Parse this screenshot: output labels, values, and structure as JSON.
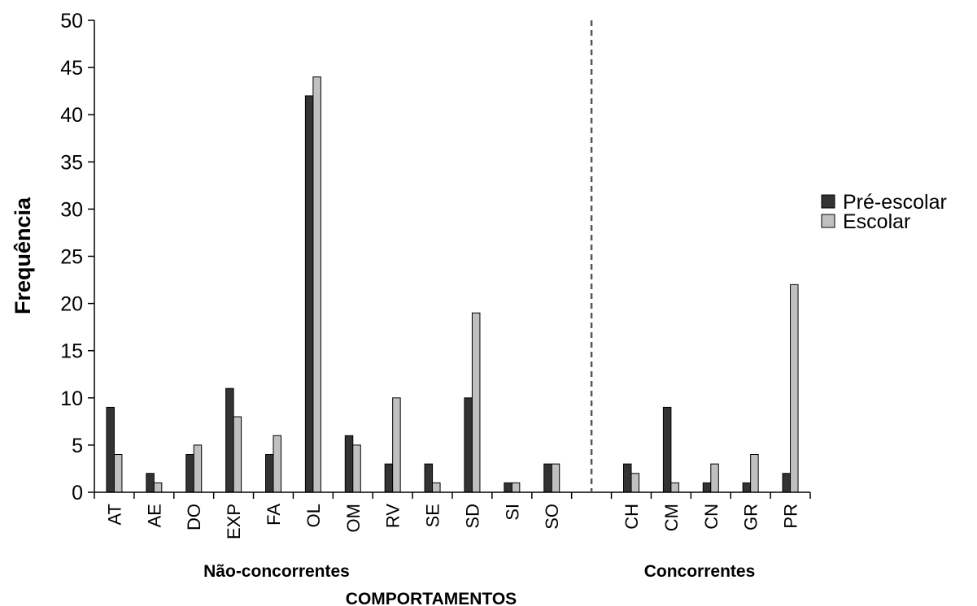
{
  "chart_data": {
    "type": "bar",
    "ylabel": "Frequência",
    "xlabel": "COMPORTAMENTOS",
    "ylim": [
      0,
      50
    ],
    "yticks": [
      0,
      5,
      10,
      15,
      20,
      25,
      30,
      35,
      40,
      45,
      50
    ],
    "categories": [
      "AT",
      "AE",
      "DO",
      "EXP",
      "FA",
      "OL",
      "OM",
      "RV",
      "SE",
      "SD",
      "SI",
      "SO",
      "",
      "CH",
      "CM",
      "CN",
      "GR",
      "PR"
    ],
    "groups": [
      {
        "label": "Não-concorrentes",
        "categories": [
          "AT",
          "AE",
          "DO",
          "EXP",
          "FA",
          "OL",
          "OM",
          "RV",
          "SE",
          "SD",
          "SI",
          "SO"
        ]
      },
      {
        "label": "Concorrentes",
        "categories": [
          "CH",
          "CM",
          "CN",
          "GR",
          "PR"
        ]
      }
    ],
    "series": [
      {
        "name": "Pré-escolar",
        "color": "#333333",
        "values": [
          9,
          2,
          4,
          11,
          4,
          42,
          6,
          3,
          3,
          10,
          1,
          3,
          null,
          3,
          9,
          1,
          1,
          2
        ]
      },
      {
        "name": "Escolar",
        "color": "#c0c0c0",
        "values": [
          4,
          1,
          5,
          8,
          6,
          44,
          5,
          10,
          1,
          19,
          1,
          3,
          null,
          2,
          1,
          3,
          4,
          22
        ]
      }
    ],
    "separator": "dashed line between SO and CH",
    "legend_position": "right",
    "grid": false
  }
}
